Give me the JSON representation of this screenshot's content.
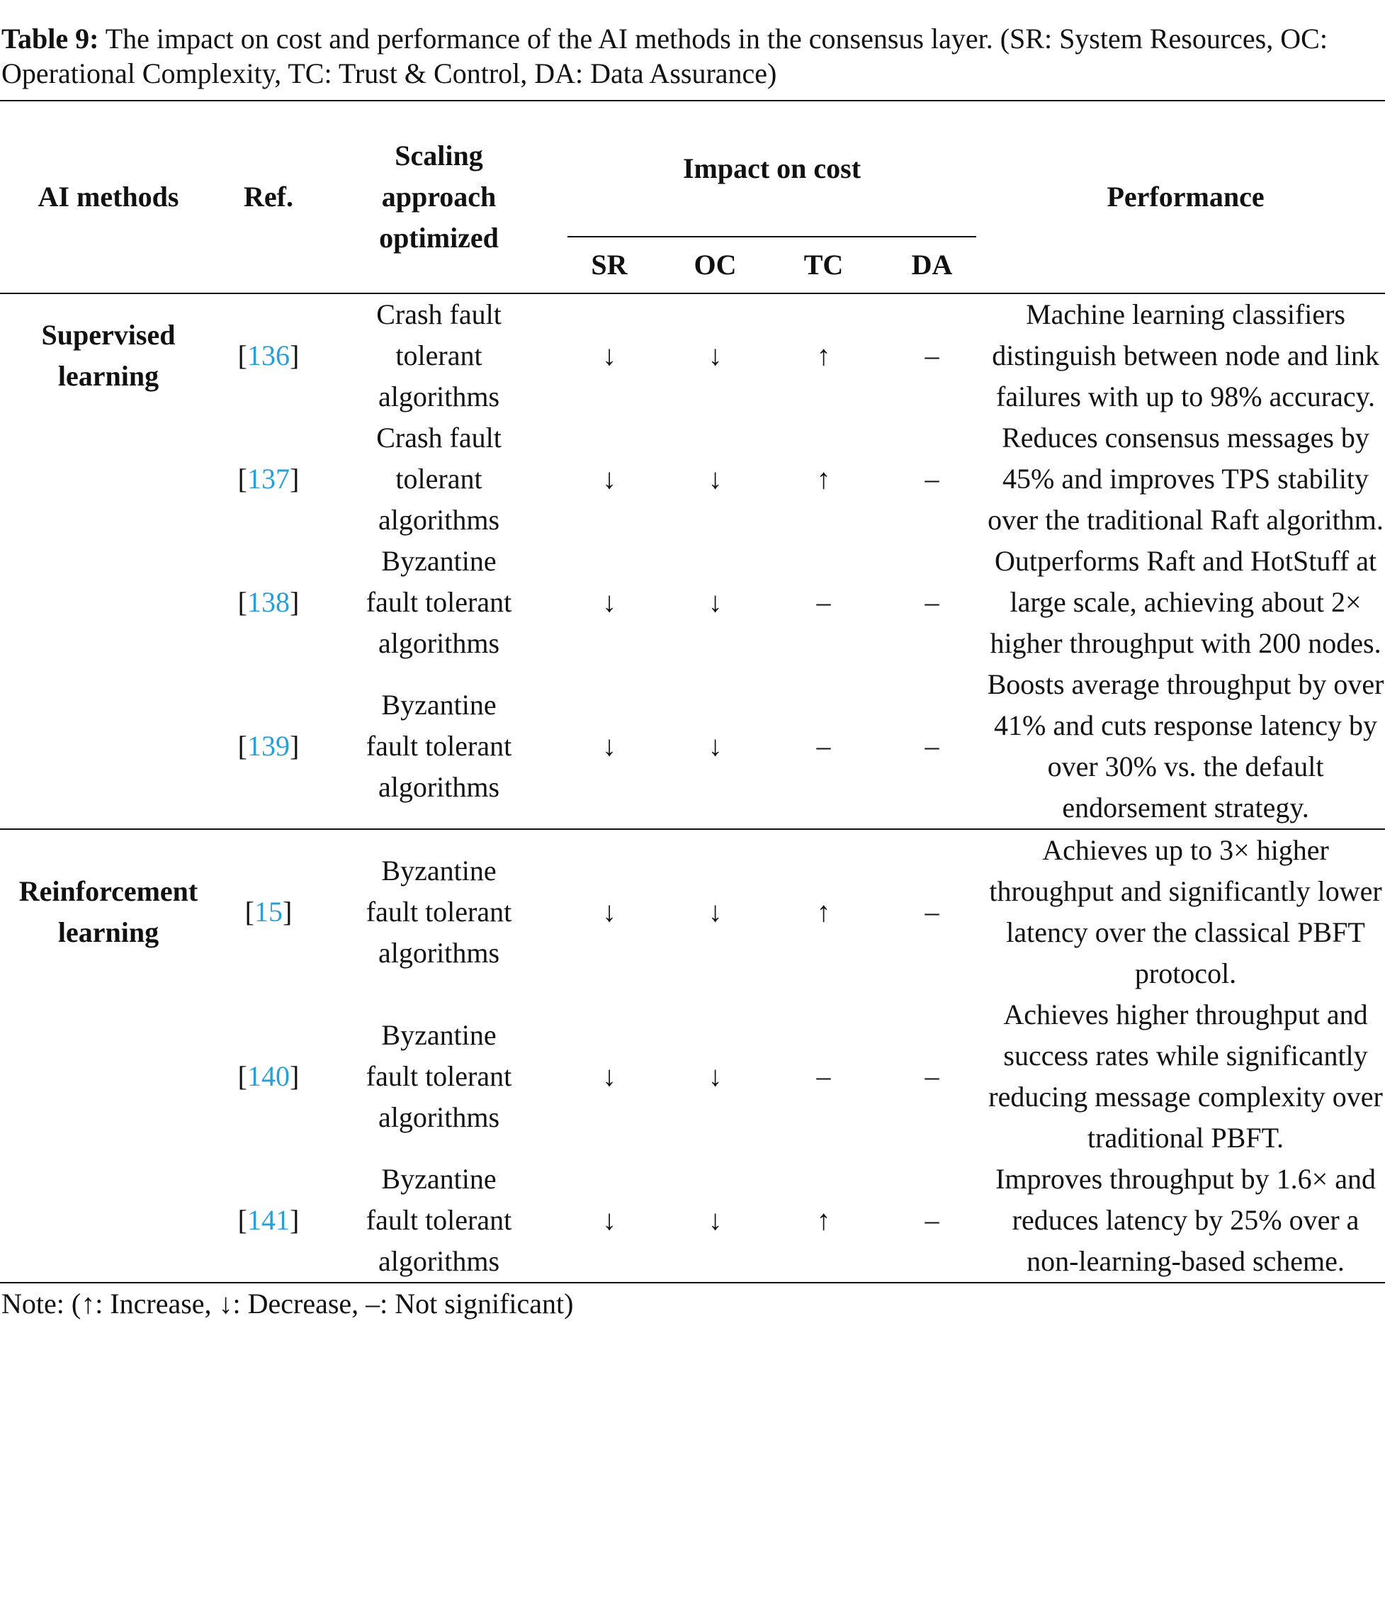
{
  "caption": {
    "label": "Table 9:",
    "text": "The impact on cost and performance of the AI methods in the consensus layer. (SR: System Resources, OC: Operational Complexity, TC: Trust & Control, DA: Data Assurance)"
  },
  "table": {
    "headers": {
      "method": "AI methods",
      "ref": "Ref.",
      "scaling": "Scaling approach optimized",
      "impact": "Impact on cost",
      "performance": "Performance",
      "sub": [
        "SR",
        "OC",
        "TC",
        "DA"
      ]
    },
    "groups": [
      {
        "method": "Supervised learning",
        "rows": [
          {
            "ref": "[136]",
            "scaling": "Crash fault tolerant algorithms",
            "impact": [
              "↓",
              "↓",
              "↑",
              "–"
            ],
            "performance": "Machine learning classifiers distinguish between node and link failures with up to 98% accuracy."
          },
          {
            "ref": "[137]",
            "scaling": "Crash fault tolerant algorithms",
            "impact": [
              "↓",
              "↓",
              "↑",
              "–"
            ],
            "performance": "Reduces consensus messages by 45% and improves TPS stability over the traditional Raft algorithm."
          },
          {
            "ref": "[138]",
            "scaling": "Byzantine fault tolerant algorithms",
            "impact": [
              "↓",
              "↓",
              "–",
              "–"
            ],
            "performance": "Outperforms Raft and HotStuff at large scale, achieving about 2× higher throughput with 200 nodes."
          },
          {
            "ref": "[139]",
            "scaling": "Byzantine fault tolerant algorithms",
            "impact": [
              "↓",
              "↓",
              "–",
              "–"
            ],
            "performance": "Boosts average throughput by over 41% and cuts response latency by over 30% vs. the default endorsement strategy."
          }
        ]
      },
      {
        "method": "Reinforcement learning",
        "rows": [
          {
            "ref": "[15]",
            "scaling": "Byzantine fault tolerant algorithms",
            "impact": [
              "↓",
              "↓",
              "↑",
              "–"
            ],
            "performance": "Achieves up to 3× higher throughput and significantly lower latency over the classical PBFT protocol."
          },
          {
            "ref": "[140]",
            "scaling": "Byzantine fault tolerant algorithms",
            "impact": [
              "↓",
              "↓",
              "–",
              "–"
            ],
            "performance": "Achieves higher throughput and success rates while significantly reducing message complexity over traditional PBFT."
          },
          {
            "ref": "[141]",
            "scaling": "Byzantine fault tolerant algorithms",
            "impact": [
              "↓",
              "↓",
              "↑",
              "–"
            ],
            "performance": "Improves throughput by 1.6× and reduces latency by 25% over a non-learning-based scheme."
          }
        ]
      }
    ]
  },
  "note": "Note: (↑: Increase, ↓: Decrease, –: Not significant)"
}
